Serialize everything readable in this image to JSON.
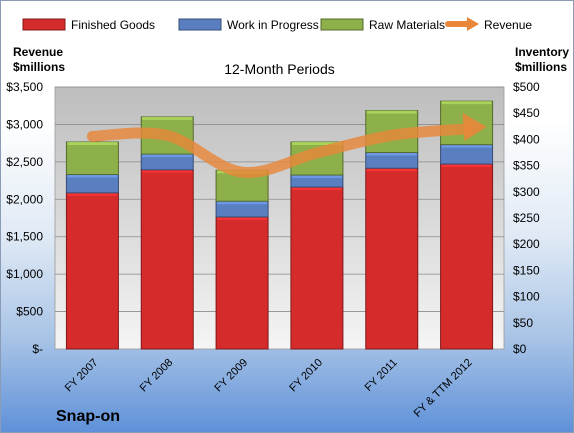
{
  "brand": "Snap-on",
  "chart_data": {
    "type": "bar",
    "stacked": true,
    "title": "12-Month Periods",
    "categories": [
      "FY 2007",
      "FY 2008",
      "FY 2009",
      "FY 2010",
      "FY 2011",
      "FY & TTM 2012"
    ],
    "left_axis": {
      "label": [
        "Revenue",
        "$millions"
      ],
      "ticks": [
        "$-",
        "$500",
        "$1,000",
        "$1,500",
        "$2,000",
        "$2,500",
        "$3,000",
        "$3,500"
      ],
      "range": [
        0,
        3500
      ]
    },
    "right_axis": {
      "label": [
        "Inventory",
        "$millions"
      ],
      "ticks": [
        "$0",
        "$50",
        "$100",
        "$150",
        "$200",
        "$250",
        "$300",
        "$350",
        "$400",
        "$450",
        "$500"
      ],
      "range": [
        0,
        500
      ]
    },
    "series": [
      {
        "name": "Finished Goods",
        "axis": "right",
        "color": "#d62b2b",
        "values": [
          298,
          342,
          252,
          309,
          345,
          353
        ]
      },
      {
        "name": "Work in Progress",
        "axis": "right",
        "color": "#5a7fc0",
        "values": [
          35,
          30,
          30,
          23,
          30,
          37
        ]
      },
      {
        "name": "Raw Materials",
        "axis": "right",
        "color": "#8db04b",
        "values": [
          62,
          71,
          59,
          63,
          80,
          83
        ]
      }
    ],
    "line": {
      "name": "Revenue",
      "axis": "left",
      "color": "#e8873a",
      "values": [
        2841,
        2853,
        2362,
        2619,
        2854,
        2940
      ]
    },
    "legend_position": "top",
    "grid": true
  }
}
